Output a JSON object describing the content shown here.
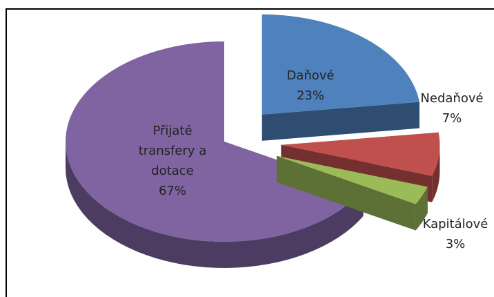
{
  "chart_data": {
    "type": "pie",
    "categories": [
      "Daňové",
      "Nedaňové",
      "Kapitálové",
      "Přijaté transfery a dotace"
    ],
    "values": [
      23,
      7,
      3,
      67
    ],
    "value_labels": [
      "23%",
      "7%",
      "3%",
      "67%"
    ],
    "colors": [
      "#4f81bd",
      "#c0504d",
      "#9bbb59",
      "#8064a2"
    ]
  }
}
